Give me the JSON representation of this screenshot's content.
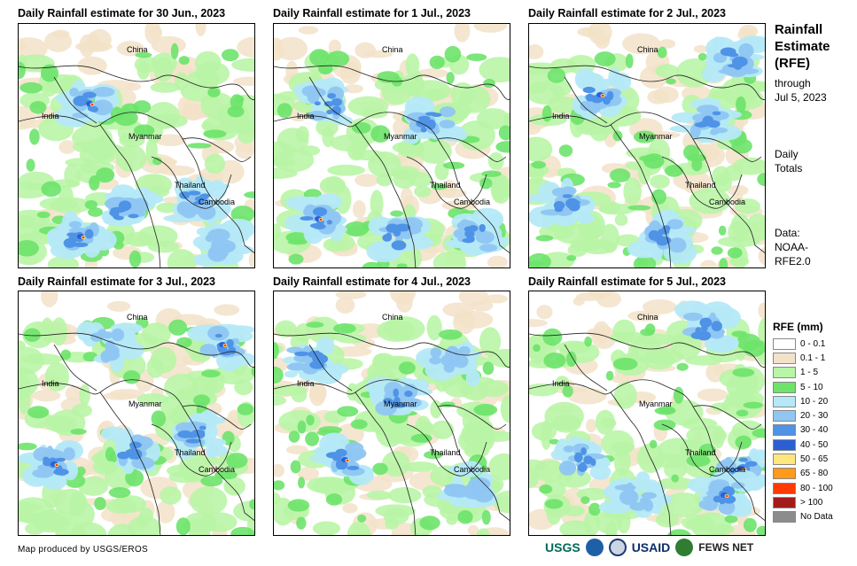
{
  "panels": [
    {
      "title": "Daily Rainfall estimate for 30 Jun., 2023"
    },
    {
      "title": "Daily Rainfall estimate for 1 Jul., 2023"
    },
    {
      "title": "Daily Rainfall estimate for 2 Jul., 2023"
    },
    {
      "title": "Daily Rainfall estimate for 3 Jul., 2023"
    },
    {
      "title": "Daily Rainfall estimate for 4 Jul., 2023"
    },
    {
      "title": "Daily Rainfall estimate for 5 Jul., 2023"
    }
  ],
  "place_labels": {
    "china": "China",
    "india": "India",
    "myanmar": "Myanmar",
    "thailand": "Thailand",
    "cambodia": "Cambodia"
  },
  "sidebar": {
    "title_line1": "Rainfall",
    "title_line2": "Estimate",
    "title_line3": "(RFE)",
    "through": "through",
    "through_date": "Jul 5, 2023",
    "daily1": "Daily",
    "daily2": "Totals",
    "data1": "Data:",
    "data2": "NOAA-",
    "data3": "RFE2.0"
  },
  "legend": {
    "title": "RFE (mm)",
    "items": [
      {
        "label": "0 - 0.1",
        "color": "#ffffff"
      },
      {
        "label": "0.1 - 1",
        "color": "#f2e2c8"
      },
      {
        "label": "1 - 5",
        "color": "#b9f5a6"
      },
      {
        "label": "5 - 10",
        "color": "#6de36a"
      },
      {
        "label": "10 - 20",
        "color": "#b5e9f7"
      },
      {
        "label": "20 - 30",
        "color": "#8fc6f2"
      },
      {
        "label": "30 - 40",
        "color": "#4f93e6"
      },
      {
        "label": "40 - 50",
        "color": "#2a5fd6"
      },
      {
        "label": "50 - 65",
        "color": "#ffe680"
      },
      {
        "label": "65 - 80",
        "color": "#ff9a1a"
      },
      {
        "label": "80 - 100",
        "color": "#ff3b00"
      },
      {
        "label": "> 100",
        "color": "#a31a1a"
      },
      {
        "label": "No Data",
        "color": "#8c8c8c"
      }
    ]
  },
  "credit": "Map produced by USGS/EROS",
  "logos": {
    "usgs": "USGS",
    "usaid": "USAID",
    "fewsnet": "FEWS NET"
  }
}
